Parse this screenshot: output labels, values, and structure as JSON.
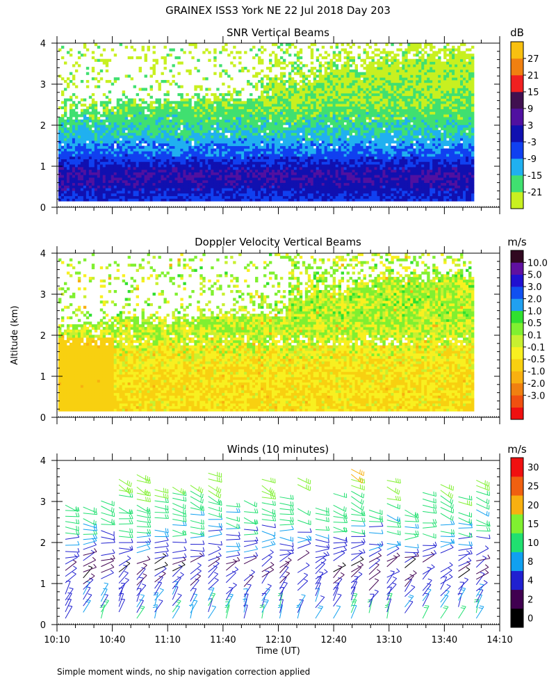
{
  "figure": {
    "title": "GRAINEX ISS3 York NE  22 Jul 2018 Day 203",
    "ylabel": "Altitude (km)",
    "xlabel": "Time (UT)",
    "footnote": "Simple moment winds, no ship navigation correction applied"
  },
  "colors": {
    "snr_palette": [
      "#c8f020",
      "#40e070",
      "#20b0f0",
      "#1040f0",
      "#1010b0",
      "#5010a0",
      "#401050",
      "#f02020",
      "#f08010",
      "#f8c010"
    ],
    "vel_palette": [
      "#f01010",
      "#f05010",
      "#f08010",
      "#f8b010",
      "#f8d010",
      "#f8f020",
      "#c8f030",
      "#80f030",
      "#30e030",
      "#20a0f0",
      "#1050f0",
      "#2010d0",
      "#6010a0",
      "#300820"
    ],
    "wind_palette": [
      "#000000",
      "#400050",
      "#2020d0",
      "#10a0f0",
      "#20e070",
      "#80f030",
      "#f8b010",
      "#f06010",
      "#f01010"
    ]
  },
  "chart_data": [
    {
      "type": "heatmap",
      "title": "SNR Vertical Beams",
      "units": "dB",
      "x_range": [
        "10:10",
        "14:10"
      ],
      "y_range": [
        0,
        4
      ],
      "y_ticks": [
        "0",
        "1",
        "2",
        "3",
        "4"
      ],
      "colorbar_labels": [
        "-21",
        "-15",
        "-9",
        "-3",
        "3",
        "9",
        "15",
        "21",
        "27"
      ],
      "profile": [
        {
          "alt_km": 0.2,
          "snr_db": 0
        },
        {
          "alt_km": 0.5,
          "snr_db": 4
        },
        {
          "alt_km": 0.8,
          "snr_db": 6
        },
        {
          "alt_km": 1.2,
          "snr_db": -3
        },
        {
          "alt_km": 1.6,
          "snr_db": -9
        },
        {
          "alt_km": 2.0,
          "snr_db": -14
        },
        {
          "alt_km": 2.6,
          "snr_db": -18
        },
        {
          "alt_km": 3.2,
          "snr_db": -20
        },
        {
          "alt_km": 3.8,
          "snr_db": -21
        }
      ]
    },
    {
      "type": "heatmap",
      "title": "Doppler Velocity Vertical Beams",
      "units": "m/s",
      "x_range": [
        "10:10",
        "14:10"
      ],
      "y_range": [
        0,
        4
      ],
      "y_ticks": [
        "0",
        "1",
        "2",
        "3",
        "4"
      ],
      "colorbar_labels": [
        "10.0",
        "5.0",
        "3.0",
        "2.0",
        "1.0",
        "0.5",
        "0.1",
        "-0.1",
        "-0.5",
        "-1.0",
        "-2.0",
        "-3.0"
      ],
      "profile": [
        {
          "alt_km": 0.5,
          "w_ms": -0.5
        },
        {
          "alt_km": 1.0,
          "w_ms": -0.5
        },
        {
          "alt_km": 1.5,
          "w_ms": -0.3
        },
        {
          "alt_km": 2.0,
          "w_ms": 0.0
        },
        {
          "alt_km": 2.5,
          "w_ms": 0.1
        },
        {
          "alt_km": 3.0,
          "w_ms": 0.1
        },
        {
          "alt_km": 3.5,
          "w_ms": 0.1
        }
      ]
    },
    {
      "type": "scatter",
      "title": "Winds (10 minutes)",
      "units": "m/s",
      "x_ticks": [
        "10:10",
        "10:40",
        "11:10",
        "11:40",
        "12:10",
        "12:40",
        "13:10",
        "13:40",
        "14:10"
      ],
      "y_range": [
        0,
        4
      ],
      "y_ticks": [
        "0",
        "1",
        "2",
        "3",
        "4"
      ],
      "colorbar_labels": [
        "0",
        "2",
        "4",
        "8",
        "10",
        "15",
        "20",
        "25",
        "30"
      ],
      "profile": [
        {
          "alt_km": 0.2,
          "speed_ms": 10,
          "dir_deg": 200
        },
        {
          "alt_km": 0.6,
          "speed_ms": 7,
          "dir_deg": 210
        },
        {
          "alt_km": 1.0,
          "speed_ms": 5,
          "dir_deg": 225
        },
        {
          "alt_km": 1.4,
          "speed_ms": 3,
          "dir_deg": 240
        },
        {
          "alt_km": 1.8,
          "speed_ms": 7,
          "dir_deg": 260
        },
        {
          "alt_km": 2.2,
          "speed_ms": 9,
          "dir_deg": 275
        },
        {
          "alt_km": 2.6,
          "speed_ms": 11,
          "dir_deg": 285
        },
        {
          "alt_km": 3.0,
          "speed_ms": 13,
          "dir_deg": 290
        },
        {
          "alt_km": 3.4,
          "speed_ms": 17,
          "dir_deg": 295
        },
        {
          "alt_km": 3.8,
          "speed_ms": 20,
          "dir_deg": 300
        }
      ]
    }
  ]
}
